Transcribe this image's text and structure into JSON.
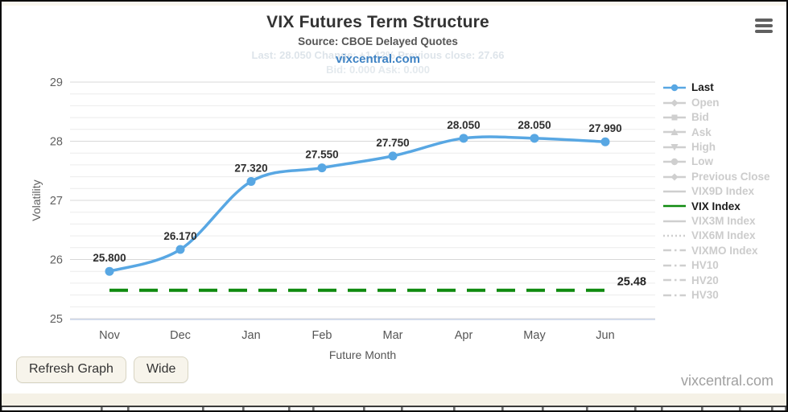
{
  "header": {
    "title": "VIX Futures Term Structure",
    "subtitle": "Source: CBOE Delayed Quotes",
    "link": "vixcentral.com",
    "ghost_tooltip_line1": "Last: 28.050    Change: +1.42%    Previous close: 27.66",
    "ghost_tooltip_line2": "Bid: 0.000    Ask: 0.000"
  },
  "colors": {
    "last_series": "#58a7e3",
    "vix_index_line": "#0f8a0f",
    "inactive_legend": "#cfcfcf",
    "grid_major": "#d8d8d8",
    "grid_minor": "#ececec",
    "x_axis_line": "#ccd6eb",
    "link_blue": "#3f83c4"
  },
  "chart_data": {
    "type": "line",
    "title": "VIX Futures Term Structure",
    "subtitle": "Source: CBOE Delayed Quotes",
    "categories": [
      "Nov",
      "Dec",
      "Jan",
      "Feb",
      "Mar",
      "Apr",
      "May",
      "Jun"
    ],
    "series": [
      {
        "name": "Last",
        "values": [
          25.8,
          26.17,
          27.32,
          27.55,
          27.75,
          28.05,
          28.05,
          27.99
        ],
        "data_labels": [
          "25.800",
          "26.170",
          "27.320",
          "27.550",
          "27.750",
          "28.050",
          "28.050",
          "27.990"
        ],
        "color": "#58a7e3",
        "marker": "circle"
      }
    ],
    "reference_line": {
      "name": "VIX Index",
      "value": 25.48,
      "label": "25.48",
      "color": "#0f8a0f",
      "style": "dashed"
    },
    "xlabel": "Future Month",
    "ylabel": "Volatility",
    "ylim": [
      25,
      29
    ],
    "y_ticks": [
      25,
      26,
      27,
      28,
      29
    ],
    "minor_tick_step": 0.2,
    "grid": true,
    "legend_position": "right"
  },
  "legend": {
    "items": [
      {
        "label": "Last",
        "active": true,
        "color": "#58a7e3",
        "line": "solid",
        "glyph": "circle"
      },
      {
        "label": "Open",
        "active": false,
        "color": "#cfcfcf",
        "line": "solid",
        "glyph": "diamond"
      },
      {
        "label": "Bid",
        "active": false,
        "color": "#cfcfcf",
        "line": "solid",
        "glyph": "square"
      },
      {
        "label": "Ask",
        "active": false,
        "color": "#cfcfcf",
        "line": "solid",
        "glyph": "triangle"
      },
      {
        "label": "High",
        "active": false,
        "color": "#cfcfcf",
        "line": "solid",
        "glyph": "triangle-down"
      },
      {
        "label": "Low",
        "active": false,
        "color": "#cfcfcf",
        "line": "solid",
        "glyph": "circle"
      },
      {
        "label": "Previous Close",
        "active": false,
        "color": "#cfcfcf",
        "line": "solid",
        "glyph": "diamond"
      },
      {
        "label": "VIX9D Index",
        "active": false,
        "color": "#cfcfcf",
        "line": "solid",
        "glyph": "none"
      },
      {
        "label": "VIX Index",
        "active": true,
        "color": "#0f8a0f",
        "line": "solid",
        "glyph": "none"
      },
      {
        "label": "VIX3M Index",
        "active": false,
        "color": "#cfcfcf",
        "line": "solid",
        "glyph": "none"
      },
      {
        "label": "VIX6M Index",
        "active": false,
        "color": "#cfcfcf",
        "line": "dotted",
        "glyph": "none"
      },
      {
        "label": "VIXMO Index",
        "active": false,
        "color": "#cfcfcf",
        "line": "dashdot",
        "glyph": "none"
      },
      {
        "label": "HV10",
        "active": false,
        "color": "#cfcfcf",
        "line": "dashdot",
        "glyph": "none"
      },
      {
        "label": "HV20",
        "active": false,
        "color": "#cfcfcf",
        "line": "dashdot",
        "glyph": "none"
      },
      {
        "label": "HV30",
        "active": false,
        "color": "#cfcfcf",
        "line": "dashdot",
        "glyph": "none"
      }
    ]
  },
  "buttons": {
    "refresh": "Refresh Graph",
    "wide": "Wide"
  },
  "footer": {
    "brand": "vixcentral.com"
  }
}
